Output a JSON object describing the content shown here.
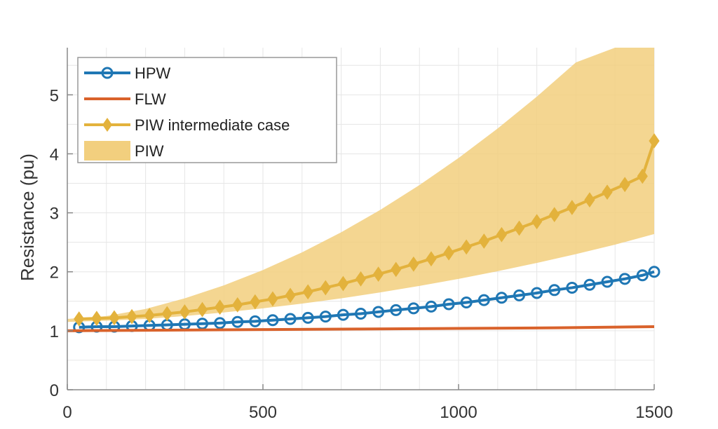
{
  "chart_data": {
    "type": "line",
    "title": "",
    "xlabel": "",
    "ylabel": "Resistance (pu)",
    "xlim": [
      0,
      1500
    ],
    "ylim": [
      0,
      5.8
    ],
    "xticks": [
      0,
      500,
      1000,
      1500
    ],
    "yticks": [
      0,
      1,
      2,
      3,
      4,
      5
    ],
    "grid": true,
    "legend_position": "top-left",
    "colors": {
      "hpw": "#1f77b4",
      "flw": "#d9622b",
      "piw": "#e3b23c",
      "piw_band": "#f2cf7e",
      "grid": "#e6e6e6",
      "axis": "#888888"
    },
    "series": [
      {
        "name": "HPW",
        "marker": "circle",
        "x": [
          30,
          75,
          120,
          165,
          210,
          255,
          300,
          345,
          390,
          435,
          480,
          525,
          570,
          615,
          660,
          705,
          750,
          795,
          840,
          885,
          930,
          975,
          1020,
          1065,
          1110,
          1155,
          1200,
          1245,
          1290,
          1335,
          1380,
          1425,
          1470,
          1500
        ],
        "y": [
          1.06,
          1.07,
          1.07,
          1.08,
          1.09,
          1.1,
          1.11,
          1.12,
          1.13,
          1.15,
          1.16,
          1.18,
          1.2,
          1.22,
          1.24,
          1.27,
          1.29,
          1.32,
          1.35,
          1.38,
          1.41,
          1.45,
          1.48,
          1.52,
          1.56,
          1.6,
          1.64,
          1.69,
          1.73,
          1.78,
          1.83,
          1.88,
          1.94,
          2.0
        ]
      },
      {
        "name": "FLW",
        "marker": "none",
        "x": [
          0,
          250,
          500,
          750,
          1000,
          1250,
          1500
        ],
        "y": [
          1.0,
          1.01,
          1.02,
          1.03,
          1.04,
          1.05,
          1.07
        ]
      },
      {
        "name": "PIW intermediate case",
        "marker": "diamond",
        "x": [
          30,
          75,
          120,
          165,
          210,
          255,
          300,
          345,
          390,
          435,
          480,
          525,
          570,
          615,
          660,
          705,
          750,
          795,
          840,
          885,
          930,
          975,
          1020,
          1065,
          1110,
          1155,
          1200,
          1245,
          1290,
          1335,
          1380,
          1425,
          1470,
          1500
        ],
        "y": [
          1.2,
          1.21,
          1.22,
          1.24,
          1.26,
          1.29,
          1.32,
          1.36,
          1.4,
          1.44,
          1.49,
          1.54,
          1.6,
          1.66,
          1.73,
          1.8,
          1.88,
          1.96,
          2.04,
          2.13,
          2.22,
          2.32,
          2.42,
          2.52,
          2.63,
          2.74,
          2.85,
          2.97,
          3.09,
          3.22,
          3.35,
          3.48,
          3.62,
          4.22
        ]
      }
    ],
    "band": {
      "name": "PIW",
      "x": [
        0,
        100,
        200,
        300,
        400,
        500,
        600,
        700,
        800,
        900,
        1000,
        1100,
        1200,
        1300,
        1400,
        1500
      ],
      "upper": [
        1.2,
        1.25,
        1.37,
        1.55,
        1.77,
        2.03,
        2.33,
        2.67,
        3.05,
        3.47,
        3.93,
        4.43,
        4.97,
        5.55,
        5.8,
        5.8
      ],
      "lower": [
        1.15,
        1.17,
        1.2,
        1.25,
        1.31,
        1.38,
        1.46,
        1.55,
        1.65,
        1.76,
        1.88,
        2.01,
        2.15,
        2.3,
        2.46,
        2.64
      ]
    },
    "legend": [
      "HPW",
      "FLW",
      "PIW intermediate case",
      "PIW"
    ]
  }
}
